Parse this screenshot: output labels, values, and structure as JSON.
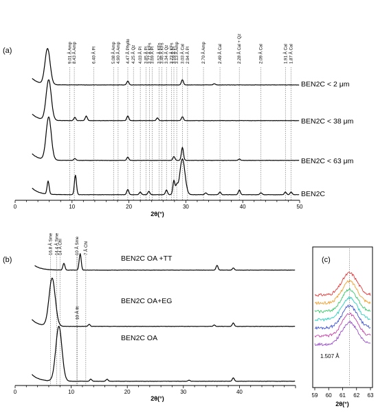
{
  "figure": {
    "panel_labels": [
      "(a)",
      "(b)",
      "(c)"
    ]
  },
  "chart_data": [
    {
      "type": "line",
      "panel": "(a)",
      "xlabel": "2θ(°)",
      "xlim": [
        0,
        50
      ],
      "xticks": [
        0,
        10,
        20,
        30,
        40,
        50
      ],
      "series": [
        {
          "name": "BEN2C < 2 μm",
          "peaks": [
            [
              5.7,
              55
            ],
            [
              19.8,
              6
            ],
            [
              29.4,
              8
            ],
            [
              35,
              2
            ]
          ]
        },
        {
          "name": "BEN2C < 38 μm",
          "peaks": [
            [
              5.9,
              62
            ],
            [
              10.5,
              5
            ],
            [
              12.5,
              7
            ],
            [
              19.8,
              7
            ],
            [
              25,
              4
            ],
            [
              29.4,
              6
            ]
          ]
        },
        {
          "name": "BEN2C < 63 μm",
          "peaks": [
            [
              5.9,
              66
            ],
            [
              10.5,
              3
            ],
            [
              19.8,
              5
            ],
            [
              27.9,
              6
            ],
            [
              29.4,
              20
            ],
            [
              39.4,
              2
            ]
          ]
        },
        {
          "name": "BEN2C",
          "peaks": [
            [
              5.8,
              20
            ],
            [
              10.6,
              30
            ],
            [
              19.8,
              8
            ],
            [
              22,
              4
            ],
            [
              23.5,
              5
            ],
            [
              26.6,
              7
            ],
            [
              27.9,
              22
            ],
            [
              28.4,
              12
            ],
            [
              29.4,
              55
            ],
            [
              33.5,
              3
            ],
            [
              36,
              4
            ],
            [
              39.4,
              7
            ],
            [
              43.2,
              3
            ],
            [
              47.5,
              4
            ],
            [
              48.5,
              4
            ]
          ]
        }
      ],
      "reference_lines": [
        {
          "x": 9.6,
          "label": "9.01 Å  Amp"
        },
        {
          "x": 10.4,
          "label": "8.43 Å  Amp"
        },
        {
          "x": 13.8,
          "label": "6.40 Å  Pl"
        },
        {
          "x": 17.3,
          "label": "5.08 Å  Amp"
        },
        {
          "x": 18.1,
          "label": "4.90 Å  Amp"
        },
        {
          "x": 19.8,
          "label": "4.47 Å  Phyllo"
        },
        {
          "x": 20.8,
          "label": "4.25 Å  Qz"
        },
        {
          "x": 22.0,
          "label": "4.03 Å  Pl"
        },
        {
          "x": 23.0,
          "label": "3.85 Å  Pl"
        },
        {
          "x": 23.6,
          "label": "3.77 Å  KFs"
        },
        {
          "x": 24.1,
          "label": "3.69 Å  Pl"
        },
        {
          "x": 25.3,
          "label": "3.52 Å  KFs"
        },
        {
          "x": 25.8,
          "label": "3.46 Å  KFs"
        },
        {
          "x": 26.6,
          "label": "3.34 Å  Qz"
        },
        {
          "x": 27.5,
          "label": "3.23 Å  KFs"
        },
        {
          "x": 27.9,
          "label": "3.19 Å  Pl"
        },
        {
          "x": 28.4,
          "label": "3.13 Å  Amp"
        },
        {
          "x": 29.4,
          "label": "3.03 Å  Cal"
        },
        {
          "x": 30.3,
          "label": "2.94 Å  Pl"
        },
        {
          "x": 33.1,
          "label": "2.70 Å  Amp"
        },
        {
          "x": 36.0,
          "label": "2.49 Å  Cal"
        },
        {
          "x": 39.4,
          "label": "2.28 Å  Cal + Qz"
        },
        {
          "x": 43.2,
          "label": "2.09 Å  Cal"
        },
        {
          "x": 47.5,
          "label": "1.91 Å  Cal"
        },
        {
          "x": 48.5,
          "label": "1.87 Å  Cal"
        }
      ]
    },
    {
      "type": "line",
      "panel": "(b)",
      "xlabel": "2θ(°)",
      "xlim": [
        0,
        50
      ],
      "xticks": [
        0,
        10,
        20,
        30,
        40
      ],
      "series": [
        {
          "name": "BEN2C OA +TT",
          "peaks": [
            [
              8.7,
              10
            ],
            [
              11.6,
              24
            ],
            [
              36,
              7
            ],
            [
              38.9,
              3
            ]
          ]
        },
        {
          "name": "BEN2C OA+EG",
          "peaks": [
            [
              6.6,
              70
            ],
            [
              13.2,
              3
            ],
            [
              35.5,
              2
            ],
            [
              38.9,
              5
            ]
          ]
        },
        {
          "name": "BEN2C OA",
          "peaks": [
            [
              7.8,
              80
            ],
            [
              13.5,
              3
            ],
            [
              16.4,
              3
            ],
            [
              31,
              1.5
            ],
            [
              38.9,
              5
            ]
          ]
        }
      ],
      "reference_lines": [
        {
          "x": 6.3,
          "label": "16.8 Å  Sme"
        },
        {
          "x": 7.4,
          "label": "14.4 Å  Sme"
        },
        {
          "x": 8.0,
          "label": "14 Å  Chl"
        },
        {
          "x": 11.0,
          "label": "10 Å  Sme"
        },
        {
          "x": 12.6,
          "label": "7 Å  Chl"
        },
        {
          "x": 11.1,
          "label": "10 Å  Ilt"
        }
      ]
    },
    {
      "type": "line",
      "panel": "(c)",
      "xlabel": "2θ(°)",
      "xlim": [
        59,
        63
      ],
      "xticks": [
        59,
        60,
        61,
        62,
        63
      ],
      "reference_lines": [
        {
          "x": 61.5,
          "label": "1.507 Å"
        }
      ],
      "series_colors": [
        "#e23b3b",
        "#f0a030",
        "#39c96a",
        "#2ad0c0",
        "#3a4fd6",
        "#c83aa8",
        "#9a50c8"
      ]
    }
  ]
}
